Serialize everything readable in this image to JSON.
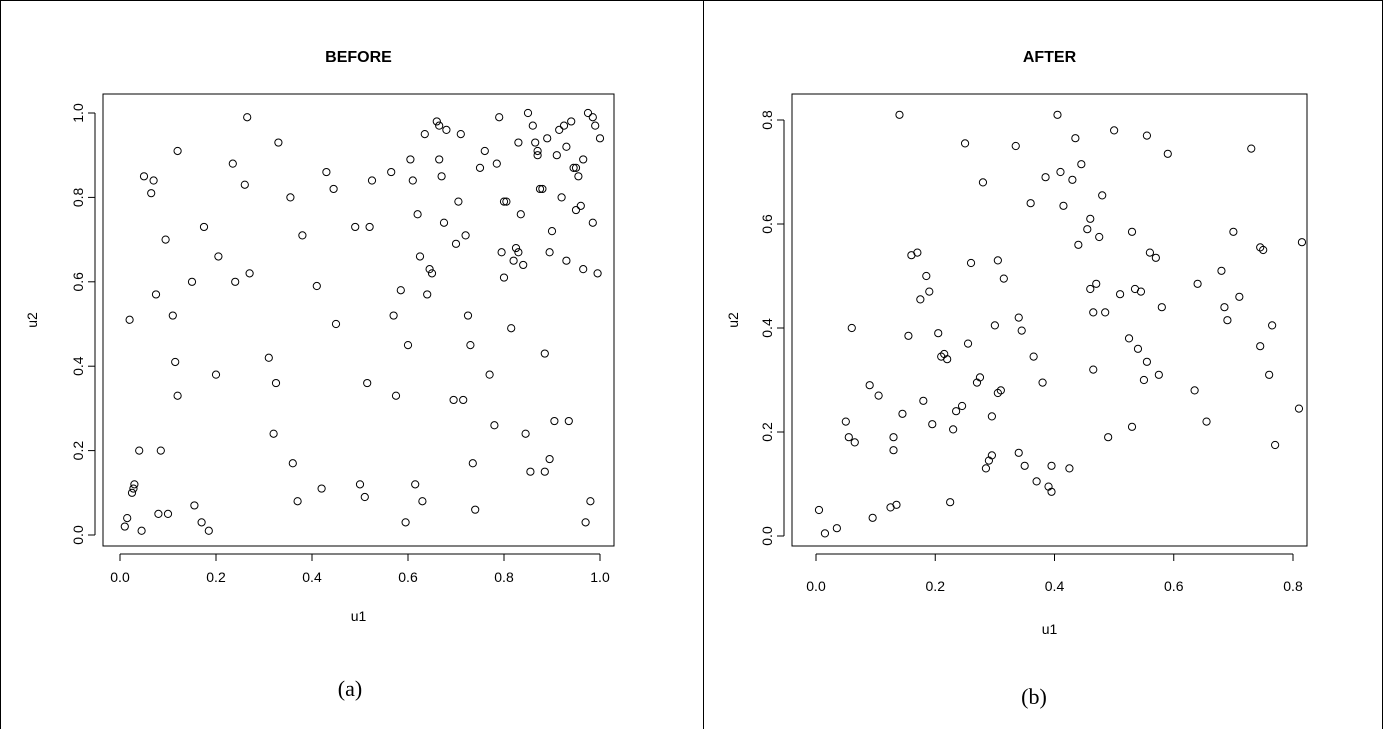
{
  "captions": {
    "left": "(a)",
    "right": "(b)"
  },
  "chart_data": [
    {
      "type": "scatter",
      "title": "BEFORE",
      "xlabel": "u1",
      "ylabel": "u2",
      "xlim": [
        0,
        1.0
      ],
      "ylim": [
        0,
        1.0
      ],
      "xticks": [
        "0.0",
        "0.2",
        "0.4",
        "0.6",
        "0.8",
        "1.0"
      ],
      "yticks": [
        "0.0",
        "0.2",
        "0.4",
        "0.6",
        "0.8",
        "1.0"
      ],
      "grid": false,
      "points": [
        [
          0.01,
          0.02
        ],
        [
          0.015,
          0.04
        ],
        [
          0.02,
          0.51
        ],
        [
          0.025,
          0.1
        ],
        [
          0.028,
          0.11
        ],
        [
          0.03,
          0.12
        ],
        [
          0.04,
          0.2
        ],
        [
          0.045,
          0.01
        ],
        [
          0.05,
          0.85
        ],
        [
          0.065,
          0.81
        ],
        [
          0.07,
          0.84
        ],
        [
          0.075,
          0.57
        ],
        [
          0.08,
          0.05
        ],
        [
          0.085,
          0.2
        ],
        [
          0.095,
          0.7
        ],
        [
          0.1,
          0.05
        ],
        [
          0.11,
          0.52
        ],
        [
          0.115,
          0.41
        ],
        [
          0.12,
          0.33
        ],
        [
          0.12,
          0.91
        ],
        [
          0.15,
          0.6
        ],
        [
          0.155,
          0.07
        ],
        [
          0.17,
          0.03
        ],
        [
          0.175,
          0.73
        ],
        [
          0.185,
          0.01
        ],
        [
          0.2,
          0.38
        ],
        [
          0.205,
          0.66
        ],
        [
          0.235,
          0.88
        ],
        [
          0.24,
          0.6
        ],
        [
          0.26,
          0.83
        ],
        [
          0.265,
          0.99
        ],
        [
          0.27,
          0.62
        ],
        [
          0.31,
          0.42
        ],
        [
          0.32,
          0.24
        ],
        [
          0.325,
          0.36
        ],
        [
          0.33,
          0.93
        ],
        [
          0.355,
          0.8
        ],
        [
          0.36,
          0.17
        ],
        [
          0.37,
          0.08
        ],
        [
          0.38,
          0.71
        ],
        [
          0.41,
          0.59
        ],
        [
          0.42,
          0.11
        ],
        [
          0.43,
          0.86
        ],
        [
          0.445,
          0.82
        ],
        [
          0.45,
          0.5
        ],
        [
          0.49,
          0.73
        ],
        [
          0.5,
          0.12
        ],
        [
          0.51,
          0.09
        ],
        [
          0.515,
          0.36
        ],
        [
          0.52,
          0.73
        ],
        [
          0.525,
          0.84
        ],
        [
          0.565,
          0.86
        ],
        [
          0.57,
          0.52
        ],
        [
          0.575,
          0.33
        ],
        [
          0.585,
          0.58
        ],
        [
          0.595,
          0.03
        ],
        [
          0.6,
          0.45
        ],
        [
          0.605,
          0.89
        ],
        [
          0.61,
          0.84
        ],
        [
          0.615,
          0.12
        ],
        [
          0.62,
          0.76
        ],
        [
          0.625,
          0.66
        ],
        [
          0.63,
          0.08
        ],
        [
          0.635,
          0.95
        ],
        [
          0.64,
          0.57
        ],
        [
          0.645,
          0.63
        ],
        [
          0.65,
          0.62
        ],
        [
          0.66,
          0.98
        ],
        [
          0.665,
          0.97
        ],
        [
          0.665,
          0.89
        ],
        [
          0.67,
          0.85
        ],
        [
          0.675,
          0.74
        ],
        [
          0.68,
          0.96
        ],
        [
          0.695,
          0.32
        ],
        [
          0.7,
          0.69
        ],
        [
          0.705,
          0.79
        ],
        [
          0.71,
          0.95
        ],
        [
          0.715,
          0.32
        ],
        [
          0.72,
          0.71
        ],
        [
          0.725,
          0.52
        ],
        [
          0.73,
          0.45
        ],
        [
          0.735,
          0.17
        ],
        [
          0.74,
          0.06
        ],
        [
          0.75,
          0.87
        ],
        [
          0.76,
          0.91
        ],
        [
          0.77,
          0.38
        ],
        [
          0.78,
          0.26
        ],
        [
          0.785,
          0.88
        ],
        [
          0.79,
          0.99
        ],
        [
          0.795,
          0.67
        ],
        [
          0.8,
          0.79
        ],
        [
          0.8,
          0.61
        ],
        [
          0.805,
          0.79
        ],
        [
          0.815,
          0.49
        ],
        [
          0.82,
          0.65
        ],
        [
          0.825,
          0.68
        ],
        [
          0.83,
          0.67
        ],
        [
          0.83,
          0.93
        ],
        [
          0.835,
          0.76
        ],
        [
          0.84,
          0.64
        ],
        [
          0.845,
          0.24
        ],
        [
          0.85,
          1.0
        ],
        [
          0.855,
          0.15
        ],
        [
          0.86,
          0.97
        ],
        [
          0.865,
          0.93
        ],
        [
          0.87,
          0.91
        ],
        [
          0.87,
          0.9
        ],
        [
          0.875,
          0.82
        ],
        [
          0.88,
          0.82
        ],
        [
          0.885,
          0.43
        ],
        [
          0.885,
          0.15
        ],
        [
          0.89,
          0.94
        ],
        [
          0.895,
          0.67
        ],
        [
          0.895,
          0.18
        ],
        [
          0.9,
          0.72
        ],
        [
          0.905,
          0.27
        ],
        [
          0.91,
          0.9
        ],
        [
          0.915,
          0.96
        ],
        [
          0.92,
          0.8
        ],
        [
          0.925,
          0.97
        ],
        [
          0.93,
          0.65
        ],
        [
          0.93,
          0.92
        ],
        [
          0.935,
          0.27
        ],
        [
          0.94,
          0.98
        ],
        [
          0.945,
          0.87
        ],
        [
          0.95,
          0.77
        ],
        [
          0.95,
          0.87
        ],
        [
          0.955,
          0.85
        ],
        [
          0.96,
          0.78
        ],
        [
          0.965,
          0.63
        ],
        [
          0.965,
          0.89
        ],
        [
          0.97,
          0.03
        ],
        [
          0.975,
          1.0
        ],
        [
          0.98,
          0.08
        ],
        [
          0.985,
          0.74
        ],
        [
          0.985,
          0.99
        ],
        [
          0.99,
          0.97
        ],
        [
          0.995,
          0.62
        ],
        [
          1.0,
          0.94
        ]
      ]
    },
    {
      "type": "scatter",
      "title": "AFTER",
      "xlabel": "u1",
      "ylabel": "u2",
      "xlim": [
        0,
        0.8
      ],
      "ylim": [
        0,
        0.8
      ],
      "xticks": [
        "0.0",
        "0.2",
        "0.4",
        "0.6",
        "0.8"
      ],
      "yticks": [
        "0.0",
        "0.2",
        "0.4",
        "0.6",
        "0.8"
      ],
      "grid": false,
      "points": [
        [
          0.005,
          0.05
        ],
        [
          0.015,
          0.005
        ],
        [
          0.035,
          0.015
        ],
        [
          0.05,
          0.22
        ],
        [
          0.055,
          0.19
        ],
        [
          0.06,
          0.4
        ],
        [
          0.065,
          0.18
        ],
        [
          0.09,
          0.29
        ],
        [
          0.095,
          0.035
        ],
        [
          0.105,
          0.27
        ],
        [
          0.125,
          0.055
        ],
        [
          0.13,
          0.19
        ],
        [
          0.13,
          0.165
        ],
        [
          0.135,
          0.06
        ],
        [
          0.14,
          0.81
        ],
        [
          0.145,
          0.235
        ],
        [
          0.155,
          0.385
        ],
        [
          0.16,
          0.54
        ],
        [
          0.17,
          0.545
        ],
        [
          0.175,
          0.455
        ],
        [
          0.18,
          0.26
        ],
        [
          0.185,
          0.5
        ],
        [
          0.19,
          0.47
        ],
        [
          0.195,
          0.215
        ],
        [
          0.205,
          0.39
        ],
        [
          0.21,
          0.345
        ],
        [
          0.215,
          0.35
        ],
        [
          0.22,
          0.34
        ],
        [
          0.225,
          0.065
        ],
        [
          0.23,
          0.205
        ],
        [
          0.235,
          0.24
        ],
        [
          0.245,
          0.25
        ],
        [
          0.25,
          0.755
        ],
        [
          0.255,
          0.37
        ],
        [
          0.26,
          0.525
        ],
        [
          0.27,
          0.295
        ],
        [
          0.275,
          0.305
        ],
        [
          0.28,
          0.68
        ],
        [
          0.285,
          0.13
        ],
        [
          0.29,
          0.145
        ],
        [
          0.295,
          0.23
        ],
        [
          0.295,
          0.155
        ],
        [
          0.3,
          0.405
        ],
        [
          0.305,
          0.53
        ],
        [
          0.305,
          0.275
        ],
        [
          0.31,
          0.28
        ],
        [
          0.315,
          0.495
        ],
        [
          0.335,
          0.75
        ],
        [
          0.34,
          0.16
        ],
        [
          0.34,
          0.42
        ],
        [
          0.345,
          0.395
        ],
        [
          0.35,
          0.135
        ],
        [
          0.36,
          0.64
        ],
        [
          0.365,
          0.345
        ],
        [
          0.37,
          0.105
        ],
        [
          0.38,
          0.295
        ],
        [
          0.385,
          0.69
        ],
        [
          0.39,
          0.095
        ],
        [
          0.395,
          0.135
        ],
        [
          0.395,
          0.085
        ],
        [
          0.405,
          0.81
        ],
        [
          0.41,
          0.7
        ],
        [
          0.415,
          0.635
        ],
        [
          0.425,
          0.13
        ],
        [
          0.43,
          0.685
        ],
        [
          0.435,
          0.765
        ],
        [
          0.44,
          0.56
        ],
        [
          0.445,
          0.715
        ],
        [
          0.455,
          0.59
        ],
        [
          0.46,
          0.61
        ],
        [
          0.46,
          0.475
        ],
        [
          0.465,
          0.43
        ],
        [
          0.465,
          0.32
        ],
        [
          0.47,
          0.485
        ],
        [
          0.475,
          0.575
        ],
        [
          0.48,
          0.655
        ],
        [
          0.485,
          0.43
        ],
        [
          0.49,
          0.19
        ],
        [
          0.5,
          0.78
        ],
        [
          0.51,
          0.465
        ],
        [
          0.525,
          0.38
        ],
        [
          0.53,
          0.585
        ],
        [
          0.53,
          0.21
        ],
        [
          0.535,
          0.475
        ],
        [
          0.54,
          0.36
        ],
        [
          0.545,
          0.47
        ],
        [
          0.55,
          0.3
        ],
        [
          0.555,
          0.77
        ],
        [
          0.555,
          0.335
        ],
        [
          0.56,
          0.545
        ],
        [
          0.57,
          0.535
        ],
        [
          0.575,
          0.31
        ],
        [
          0.58,
          0.44
        ],
        [
          0.59,
          0.735
        ],
        [
          0.635,
          0.28
        ],
        [
          0.64,
          0.485
        ],
        [
          0.655,
          0.22
        ],
        [
          0.68,
          0.51
        ],
        [
          0.685,
          0.44
        ],
        [
          0.69,
          0.415
        ],
        [
          0.7,
          0.585
        ],
        [
          0.71,
          0.46
        ],
        [
          0.73,
          0.745
        ],
        [
          0.745,
          0.555
        ],
        [
          0.745,
          0.365
        ],
        [
          0.75,
          0.55
        ],
        [
          0.76,
          0.31
        ],
        [
          0.765,
          0.405
        ],
        [
          0.77,
          0.175
        ],
        [
          0.81,
          0.245
        ],
        [
          0.815,
          0.565
        ]
      ]
    }
  ]
}
